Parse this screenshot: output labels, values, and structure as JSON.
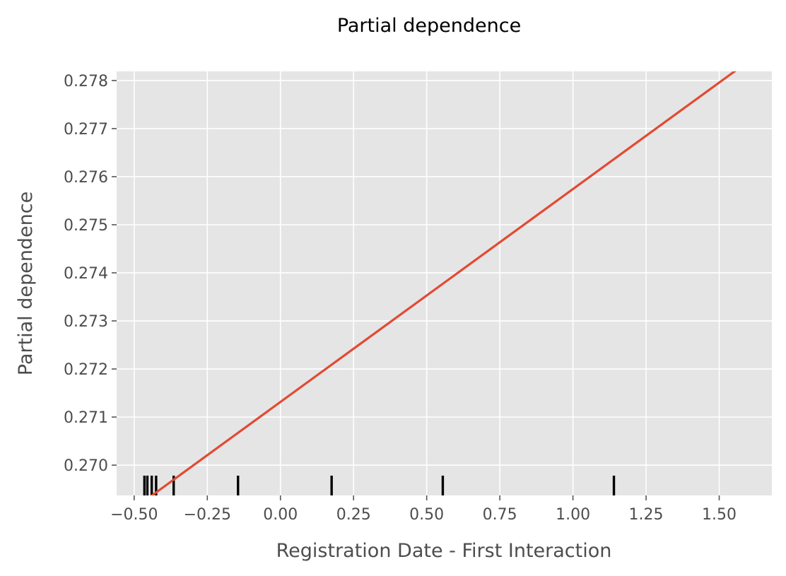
{
  "chart_data": {
    "type": "line",
    "title": "Partial dependence",
    "xlabel": "Registration Date - First Interaction",
    "ylabel": "Partial dependence",
    "xlim": [
      -0.56,
      1.68
    ],
    "ylim": [
      0.26937,
      0.27819
    ],
    "xticks": [
      -0.5,
      -0.25,
      0.0,
      0.25,
      0.5,
      0.75,
      1.0,
      1.25,
      1.5
    ],
    "xtick_labels": [
      "−0.50",
      "−0.25",
      "0.00",
      "0.25",
      "0.50",
      "0.75",
      "1.00",
      "1.25",
      "1.50"
    ],
    "yticks": [
      0.27,
      0.271,
      0.272,
      0.273,
      0.274,
      0.275,
      0.276,
      0.277,
      0.278
    ],
    "ytick_labels": [
      "0.270",
      "0.271",
      "0.272",
      "0.273",
      "0.274",
      "0.275",
      "0.276",
      "0.277",
      "0.278"
    ],
    "grid": true,
    "series": [
      {
        "x": [
          -0.5,
          1.6
        ],
        "y": [
          0.2691,
          0.2784
        ],
        "color": "#e24a33"
      }
    ],
    "rug": {
      "x": [
        -0.465,
        -0.455,
        -0.44,
        -0.425,
        -0.365,
        -0.145,
        0.175,
        0.555,
        1.14
      ],
      "color": "#000000"
    },
    "colors": {
      "plot_background": "#e5e5e5",
      "grid": "#ffffff",
      "line": "#e24a33",
      "rug": "#000000",
      "tick_text": "#4d4d4d"
    }
  }
}
